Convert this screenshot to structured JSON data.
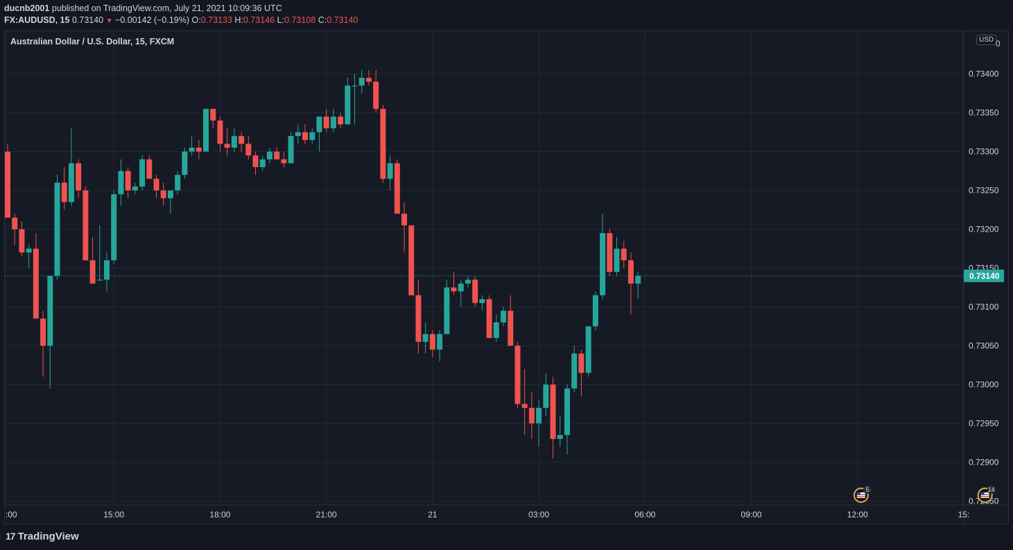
{
  "header": {
    "author": "ducnb2001",
    "published_text": "published on TradingView.com, July 21, 2021 10:09:36 UTC",
    "symbol": "FX:AUDUSD, 15",
    "last": "0.73140",
    "change_arrow": "▼",
    "change": "−0.00142 (−0.19%)",
    "o_label": "O:",
    "o": "0.73133",
    "h_label": "H:",
    "h": "0.73146",
    "l_label": "L:",
    "l": "0.73108",
    "c_label": "C:",
    "c": "0.73140"
  },
  "legend": "Australian Dollar / U.S. Dollar, 15, FXCM",
  "currency_badge": "USD",
  "brand": {
    "mark": "17",
    "name": "TradingView"
  },
  "colors": {
    "up": "#26a69a",
    "down": "#ef5350",
    "background": "#131722",
    "grid": "#232733",
    "text": "#d1d4dc"
  },
  "events": [
    {
      "icon": "us-flag-icon",
      "count": "5",
      "bar_index": 120.5
    },
    {
      "icon": "us-flag-icon",
      "count": "14",
      "bar_index": 138
    }
  ],
  "chart_data": {
    "type": "candlestick",
    "title": "Australian Dollar / U.S. Dollar, 15, FXCM",
    "ylim": [
      0.72845,
      0.73455
    ],
    "y_ticks": [
      "0.73400",
      "0.73350",
      "0.73300",
      "0.73250",
      "0.73200",
      "0.73150",
      "0.73100",
      "0.73050",
      "0.73000",
      "0.72950",
      "0.72900",
      "0.72850"
    ],
    "y_top_tick": "0",
    "x_ticks": [
      {
        "label": ":00",
        "bar": -0.3
      },
      {
        "label": "15:00",
        "bar": 15
      },
      {
        "label": "18:00",
        "bar": 30
      },
      {
        "label": "21:00",
        "bar": 45
      },
      {
        "label": "21",
        "bar": 60
      },
      {
        "label": "03:00",
        "bar": 75
      },
      {
        "label": "06:00",
        "bar": 90
      },
      {
        "label": "09:00",
        "bar": 105
      },
      {
        "label": "12:00",
        "bar": 120
      },
      {
        "label": "15:",
        "bar": 135
      }
    ],
    "current_price": "0.73140",
    "current_value": 0.7314,
    "candles": [
      [
        0.733,
        0.7331,
        0.73215,
        0.73215
      ],
      [
        0.73215,
        0.7322,
        0.7318,
        0.732
      ],
      [
        0.732,
        0.7321,
        0.73165,
        0.7317
      ],
      [
        0.7317,
        0.7318,
        0.7315,
        0.73175
      ],
      [
        0.73175,
        0.73195,
        0.73085,
        0.73085
      ],
      [
        0.73085,
        0.73095,
        0.7301,
        0.7305
      ],
      [
        0.7305,
        0.7314,
        0.72995,
        0.7314
      ],
      [
        0.7314,
        0.7327,
        0.73135,
        0.7326
      ],
      [
        0.7326,
        0.7328,
        0.73225,
        0.73235
      ],
      [
        0.73235,
        0.7333,
        0.7323,
        0.73285
      ],
      [
        0.73285,
        0.7329,
        0.7324,
        0.7325
      ],
      [
        0.7325,
        0.73255,
        0.7316,
        0.7316
      ],
      [
        0.7316,
        0.7319,
        0.7313,
        0.7313
      ],
      [
        0.73135,
        0.73205,
        0.73135,
        0.73135
      ],
      [
        0.73135,
        0.7317,
        0.7312,
        0.7316
      ],
      [
        0.7316,
        0.7325,
        0.73155,
        0.73245
      ],
      [
        0.73245,
        0.7329,
        0.7323,
        0.73275
      ],
      [
        0.73275,
        0.7328,
        0.7324,
        0.7325
      ],
      [
        0.7325,
        0.7326,
        0.73245,
        0.73255
      ],
      [
        0.73255,
        0.73295,
        0.7325,
        0.7329
      ],
      [
        0.7329,
        0.73295,
        0.73265,
        0.73265
      ],
      [
        0.73265,
        0.7327,
        0.7324,
        0.7325
      ],
      [
        0.7325,
        0.7326,
        0.7323,
        0.7324
      ],
      [
        0.7324,
        0.73245,
        0.7322,
        0.7325
      ],
      [
        0.7325,
        0.73275,
        0.73245,
        0.7327
      ],
      [
        0.7327,
        0.73305,
        0.73265,
        0.733
      ],
      [
        0.733,
        0.7332,
        0.73295,
        0.73305
      ],
      [
        0.73305,
        0.73315,
        0.7329,
        0.733
      ],
      [
        0.733,
        0.73355,
        0.733,
        0.73355
      ],
      [
        0.73355,
        0.73355,
        0.7333,
        0.7334
      ],
      [
        0.7334,
        0.73345,
        0.733,
        0.7331
      ],
      [
        0.7331,
        0.7333,
        0.73295,
        0.73305
      ],
      [
        0.73305,
        0.7333,
        0.733,
        0.7332
      ],
      [
        0.7332,
        0.73325,
        0.733,
        0.7331
      ],
      [
        0.7331,
        0.7332,
        0.7329,
        0.73295
      ],
      [
        0.73295,
        0.733,
        0.7327,
        0.7328
      ],
      [
        0.7328,
        0.73295,
        0.73275,
        0.7329
      ],
      [
        0.7329,
        0.73305,
        0.73285,
        0.733
      ],
      [
        0.733,
        0.73305,
        0.7329,
        0.7329
      ],
      [
        0.7329,
        0.733,
        0.7328,
        0.73285
      ],
      [
        0.73285,
        0.73325,
        0.73285,
        0.7332
      ],
      [
        0.7332,
        0.73335,
        0.7331,
        0.73325
      ],
      [
        0.73325,
        0.73335,
        0.7331,
        0.73315
      ],
      [
        0.73315,
        0.7333,
        0.7331,
        0.73325
      ],
      [
        0.73325,
        0.73345,
        0.733,
        0.73345
      ],
      [
        0.73345,
        0.73355,
        0.73325,
        0.7333
      ],
      [
        0.7333,
        0.73355,
        0.73325,
        0.73345
      ],
      [
        0.73345,
        0.7335,
        0.7333,
        0.73335
      ],
      [
        0.73335,
        0.73395,
        0.73335,
        0.73385
      ],
      [
        0.73385,
        0.734,
        0.73335,
        0.73385
      ],
      [
        0.73385,
        0.73405,
        0.73375,
        0.73395
      ],
      [
        0.73395,
        0.73405,
        0.73385,
        0.7339
      ],
      [
        0.7339,
        0.73405,
        0.7335,
        0.73355
      ],
      [
        0.73355,
        0.7336,
        0.7326,
        0.73265
      ],
      [
        0.73265,
        0.73295,
        0.7325,
        0.73285
      ],
      [
        0.73285,
        0.7329,
        0.7322,
        0.7322
      ],
      [
        0.7322,
        0.73235,
        0.7317,
        0.73205
      ],
      [
        0.73205,
        0.73205,
        0.73115,
        0.73115
      ],
      [
        0.73115,
        0.73135,
        0.7304,
        0.73055
      ],
      [
        0.73055,
        0.7308,
        0.7304,
        0.73065
      ],
      [
        0.73065,
        0.7307,
        0.73035,
        0.73045
      ],
      [
        0.73045,
        0.7307,
        0.7303,
        0.73065
      ],
      [
        0.73065,
        0.73135,
        0.73065,
        0.73125
      ],
      [
        0.73125,
        0.73145,
        0.73115,
        0.7312
      ],
      [
        0.7312,
        0.73135,
        0.731,
        0.7313
      ],
      [
        0.7313,
        0.7314,
        0.73125,
        0.73135
      ],
      [
        0.73135,
        0.7314,
        0.731,
        0.73105
      ],
      [
        0.73105,
        0.73115,
        0.73095,
        0.7311
      ],
      [
        0.7311,
        0.73115,
        0.7306,
        0.7306
      ],
      [
        0.7306,
        0.7309,
        0.73055,
        0.7308
      ],
      [
        0.7308,
        0.731,
        0.73075,
        0.73095
      ],
      [
        0.73095,
        0.73115,
        0.7305,
        0.7305
      ],
      [
        0.7305,
        0.73055,
        0.7297,
        0.72975
      ],
      [
        0.72975,
        0.7302,
        0.72935,
        0.7297
      ],
      [
        0.7297,
        0.7299,
        0.7293,
        0.7295
      ],
      [
        0.7295,
        0.7298,
        0.7292,
        0.7297
      ],
      [
        0.7297,
        0.73015,
        0.7296,
        0.73
      ],
      [
        0.73,
        0.7301,
        0.72905,
        0.7293
      ],
      [
        0.7293,
        0.7296,
        0.7292,
        0.72935
      ],
      [
        0.72935,
        0.73,
        0.7291,
        0.72995
      ],
      [
        0.72995,
        0.7305,
        0.7299,
        0.7304
      ],
      [
        0.7304,
        0.73045,
        0.72985,
        0.73015
      ],
      [
        0.73015,
        0.73075,
        0.7301,
        0.73075
      ],
      [
        0.73075,
        0.7312,
        0.7307,
        0.73115
      ],
      [
        0.73115,
        0.7322,
        0.7311,
        0.73195
      ],
      [
        0.73195,
        0.732,
        0.7314,
        0.73145
      ],
      [
        0.73145,
        0.7319,
        0.7314,
        0.73175
      ],
      [
        0.73175,
        0.73185,
        0.7315,
        0.7316
      ],
      [
        0.7316,
        0.7317,
        0.7309,
        0.7313
      ],
      [
        0.7313,
        0.73145,
        0.7311,
        0.7314
      ]
    ]
  }
}
